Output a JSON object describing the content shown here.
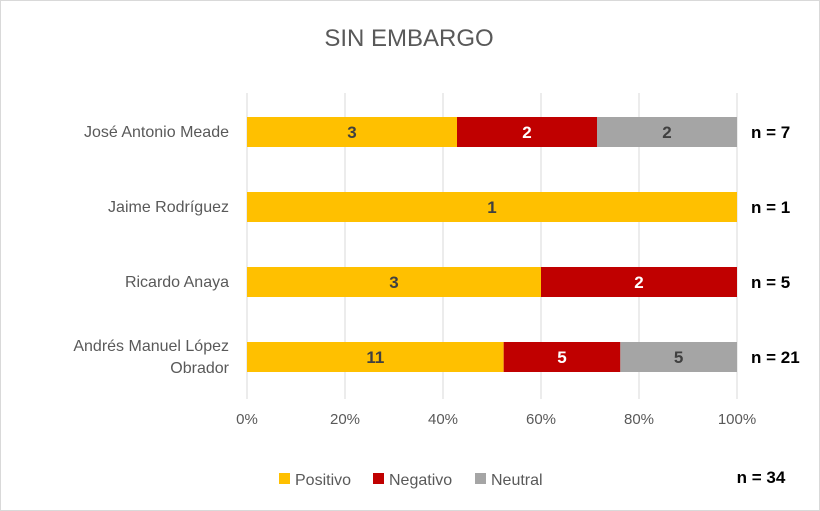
{
  "chart_data": {
    "type": "bar",
    "orientation": "horizontal",
    "stacked": "percent",
    "title": "SIN EMBARGO",
    "categories": [
      "José Antonio Meade",
      "Jaime Rodríguez",
      "Ricardo Anaya",
      "Andrés Manuel López Obrador"
    ],
    "series": [
      {
        "name": "Positivo",
        "color": "#FFC000",
        "values": [
          3,
          1,
          3,
          11
        ]
      },
      {
        "name": "Negativo",
        "color": "#C00000",
        "values": [
          2,
          0,
          2,
          5
        ]
      },
      {
        "name": "Neutral",
        "color": "#A5A5A5",
        "values": [
          2,
          0,
          0,
          5
        ]
      }
    ],
    "totals_labels": [
      "n = 7",
      "n = 1",
      "n = 5",
      "n = 21"
    ],
    "overall_total_label": "n = 34",
    "x_ticks": [
      "0%",
      "20%",
      "40%",
      "60%",
      "80%",
      "100%"
    ],
    "xlim": [
      0,
      100
    ],
    "legend_position": "bottom",
    "gridlines": true
  }
}
